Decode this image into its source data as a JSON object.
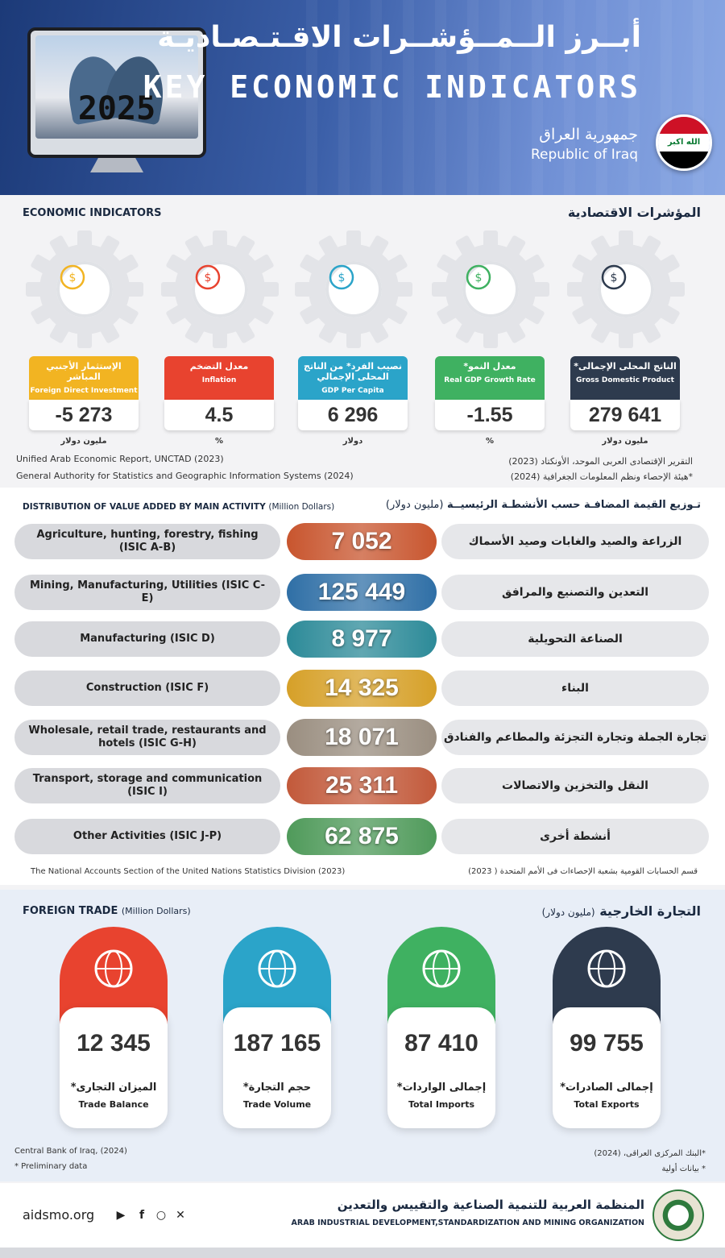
{
  "header": {
    "year": "2025",
    "title_ar": "أبــرز الــمــؤشــرات الاقـتـصـاديـة",
    "title_en": "KEY ECONOMIC INDICATORS",
    "country_ar": "جمهورية العراق",
    "country_en": "Republic of Iraq",
    "flag_text": "الله اكبر",
    "flag_colors": [
      "#ce1126",
      "#ffffff",
      "#000000"
    ]
  },
  "economic": {
    "title_en": "ECONOMIC INDICATORS",
    "title_ar": "المؤشرات الاقتصادية",
    "indicators": [
      {
        "ar": "الإستثمار الأجنبي المباشر",
        "en": "Foreign Direct Investment",
        "value": "-5 273",
        "unit": "مليون دولار",
        "color": "#f2b422",
        "icon": "globe-money-hand-icon"
      },
      {
        "ar": "معدل التضخم",
        "en": "Inflation",
        "value": "4.5",
        "unit": "%",
        "color": "#e8432f",
        "icon": "inflation-coins-icon"
      },
      {
        "ar": "نصيب الفرد* من الناتج المحلى الإجمالي",
        "en": "GDP Per Capita",
        "value": "6 296",
        "unit": "دولار",
        "color": "#2ba4c9",
        "icon": "person-dollar-icon"
      },
      {
        "ar": "معدل النمو*",
        "en": "Real GDP Growth Rate",
        "value": "-1.55",
        "unit": "%",
        "color": "#3fb161",
        "icon": "growth-percent-icon"
      },
      {
        "ar": "الناتج المحلى الإجمالى*",
        "en": "Gross Domestic Product",
        "value": "279 641",
        "unit": "مليون دولار",
        "color": "#2e3b4e",
        "icon": "gdp-globe-icon"
      }
    ],
    "source_en_1": "Unified  Arab  Economic Report, UNCTAD (2023)",
    "source_en_2": "General Authority for Statistics and Geographic Information Systems (2024)",
    "source_ar_1": "التقرير الإقتصادى العربى الموحد، الأونكتاد (2023)",
    "source_ar_2": "*هيئة الإحصاء ونظم المعلومات الجغرافية (2024)"
  },
  "distribution": {
    "title_en": "DISTRIBUTION OF VALUE ADDED BY  MAIN  ACTIVITY",
    "title_en_unit": "(Million Dollars)",
    "title_ar": "تـوزيع القيمة المضافـة حسب الأنشطـة الرئيسيــة",
    "title_ar_unit": "(مليون دولار)",
    "rows": [
      {
        "en": "Agriculture, hunting, forestry, fishing (ISIC A-B)",
        "value": "7 052",
        "ar": "الزراعة والصيد والغابات وصيد الأسماك",
        "bg": "#c8552e"
      },
      {
        "en": "Mining, Manufacturing, Utilities (ISIC C-E)",
        "value": "125 449",
        "ar": "التعدين والتصنيع والمرافق",
        "bg": "#2f6fa6"
      },
      {
        "en": "Manufacturing (ISIC D)",
        "value": "8 977",
        "ar": "الصناعة التحويلية",
        "bg": "#2c8a98"
      },
      {
        "en": "Construction (ISIC F)",
        "value": "14 325",
        "ar": "البناء",
        "bg": "#d6a028"
      },
      {
        "en": "Wholesale, retail trade, restaurants and hotels (ISIC G-H)",
        "value": "18 071",
        "ar": "تجارة الجملة وتجارة التجزئة والمطاعم والفنادق",
        "bg": "#9a8e80"
      },
      {
        "en": "Transport, storage and communication (ISIC I)",
        "value": "25 311",
        "ar": "النقل والتخزين والاتصالات",
        "bg": "#c2593a"
      },
      {
        "en": "Other Activities (ISIC J-P)",
        "value": "62 875",
        "ar": "أنشطة أخرى",
        "bg": "#4f9a5a"
      }
    ],
    "source_en": "The National Accounts Section of the United Nations Statistics Division (2023)",
    "source_ar": "قسم الحسابات القومية بشعبة الإحصاءات فى الأمم المتحدة ( 2023)"
  },
  "trade": {
    "title_en": "FOREIGN TRADE",
    "title_en_unit": "(Million Dollars)",
    "title_ar": "التجارة الخارجية",
    "title_ar_unit": "(مليون دولار)",
    "cards": [
      {
        "value": "12 345",
        "ar": "الميزان التجارى*",
        "en": "Trade Balance",
        "color": "#e8432f",
        "icon": "trade-balance-icon"
      },
      {
        "value": "187 165",
        "ar": "حجم التجارة*",
        "en": "Trade Volume",
        "color": "#2ba4c9",
        "icon": "cart-globe-icon"
      },
      {
        "value": "87 410",
        "ar": "إجمالى الواردات*",
        "en": "Total Imports",
        "color": "#3fb161",
        "icon": "globe-import-icon"
      },
      {
        "value": "99 755",
        "ar": "إجمالى الصادرات*",
        "en": "Total Exports",
        "color": "#2e3b4e",
        "icon": "globe-export-icon"
      }
    ],
    "source_en": "Central Bank of Iraq, (2024)",
    "note_en": "* Preliminary data",
    "source_ar": "*البنك المركزى العراقى، (2024)",
    "note_ar": "* بيانات أولية"
  },
  "footer": {
    "site": "aidsmo.org",
    "org_ar": "المنظمة العربية للتنمية الصناعية والتقييس والتعدين",
    "org_en": "ARAB INDUSTRIAL DEVELOPMENT,STANDARDIZATION AND MINING ORGANIZATION",
    "social": [
      "youtube-icon",
      "facebook-icon",
      "instagram-icon",
      "x-icon"
    ]
  }
}
